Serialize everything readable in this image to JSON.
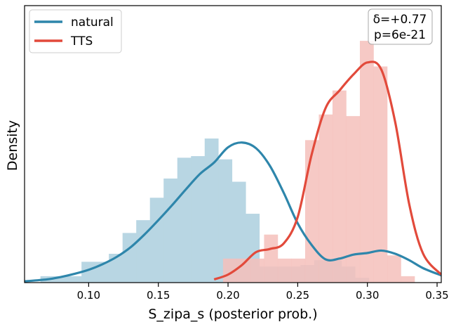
{
  "chart_data": {
    "type": "histogram+kde",
    "xlabel": "S_zipa_s (posterior prob.)",
    "ylabel": "Density",
    "xlim": [
      0.054,
      0.353
    ],
    "ylim": [
      0,
      17.3
    ],
    "xticks": [
      0.1,
      0.15,
      0.2,
      0.25,
      0.3,
      0.35
    ],
    "xtick_labels": [
      "0.10",
      "0.15",
      "0.20",
      "0.25",
      "0.30",
      "0.35"
    ],
    "legend": {
      "position": "top-left",
      "entries": [
        "natural",
        "TTS"
      ]
    },
    "annotation": {
      "lines": [
        "δ=+0.77",
        "p=6e-21"
      ],
      "position": "top-right"
    },
    "series": [
      {
        "name": "natural",
        "line_color": "#2e86ab",
        "bar_color": "#b8d6e3",
        "bin_start": 0.0654,
        "bin_width": 0.00982,
        "hist": [
          0.4,
          0.4,
          0.4,
          1.3,
          1.3,
          1.8,
          3.1,
          3.9,
          5.3,
          6.5,
          7.8,
          7.9,
          9.0,
          7.7,
          6.3,
          4.3,
          1.0,
          1.0,
          1.0,
          1.1,
          1.4,
          1.4,
          1.0,
          0.3
        ],
        "kde_x": [
          0.054,
          0.07,
          0.08,
          0.09,
          0.1,
          0.11,
          0.12,
          0.13,
          0.14,
          0.15,
          0.16,
          0.17,
          0.18,
          0.19,
          0.2,
          0.21,
          0.22,
          0.23,
          0.24,
          0.25,
          0.26,
          0.27,
          0.28,
          0.29,
          0.3,
          0.31,
          0.32,
          0.33,
          0.34,
          0.353
        ],
        "kde_y": [
          0.08,
          0.2,
          0.35,
          0.55,
          0.8,
          1.15,
          1.6,
          2.2,
          3.0,
          3.9,
          4.85,
          5.85,
          6.8,
          7.5,
          8.45,
          8.75,
          8.4,
          7.3,
          5.6,
          3.7,
          2.35,
          1.45,
          1.5,
          1.75,
          1.85,
          2.0,
          1.8,
          1.4,
          0.9,
          0.45
        ]
      },
      {
        "name": "TTS",
        "line_color": "#e24a3b",
        "bar_color": "#f5bfbb",
        "bin_start": 0.1964,
        "bin_width": 0.00982,
        "hist": [
          1.5,
          1.5,
          1.5,
          3.0,
          1.5,
          1.5,
          8.9,
          10.5,
          12.0,
          10.4,
          15.1,
          13.5,
          1.7,
          0.4
        ],
        "kde_x": [
          0.19,
          0.2,
          0.21,
          0.22,
          0.23,
          0.24,
          0.25,
          0.26,
          0.27,
          0.28,
          0.29,
          0.3,
          0.31,
          0.32,
          0.33,
          0.34,
          0.353
        ],
        "kde_y": [
          0.2,
          0.5,
          1.1,
          1.9,
          2.1,
          2.45,
          4.1,
          8.0,
          10.9,
          12.0,
          13.0,
          13.75,
          13.3,
          10.0,
          4.9,
          1.8,
          0.5
        ]
      }
    ]
  }
}
